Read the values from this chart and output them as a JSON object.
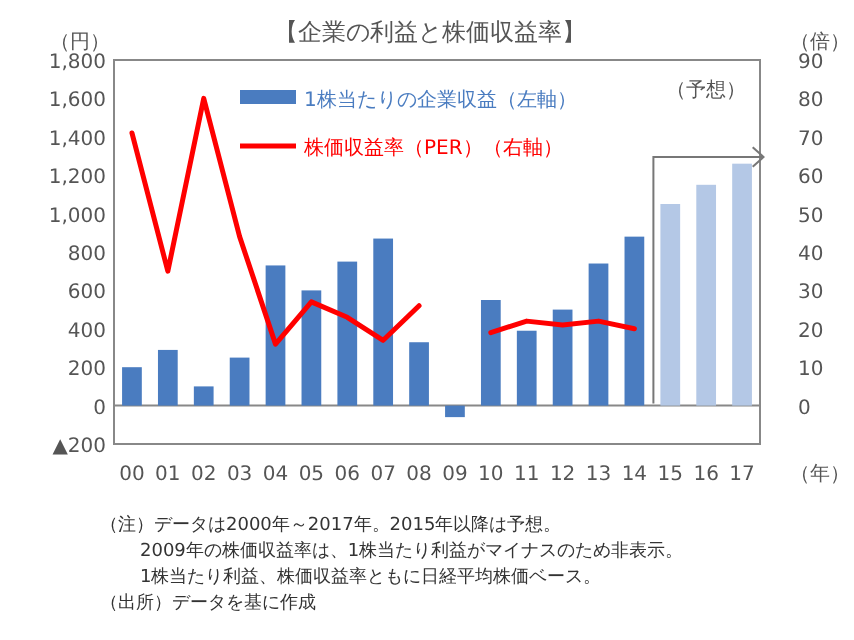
{
  "chart_data": {
    "type": "bar",
    "title": "【企業の利益と株価収益率】",
    "ylabel": "（円）",
    "y2label": "（倍）",
    "xlabel": "（年）",
    "categories": [
      "00",
      "01",
      "02",
      "03",
      "04",
      "05",
      "06",
      "07",
      "08",
      "09",
      "10",
      "11",
      "12",
      "13",
      "14",
      "15",
      "16",
      "17"
    ],
    "series": [
      {
        "name": "1株当たりの企業収益（左軸）",
        "color": "#4a7cc0",
        "colors": [
          "#4a7cc0",
          "#4a7cc0",
          "#4a7cc0",
          "#4a7cc0",
          "#4a7cc0",
          "#4a7cc0",
          "#4a7cc0",
          "#4a7cc0",
          "#4a7cc0",
          "#4a7cc0",
          "#4a7cc0",
          "#4a7cc0",
          "#4a7cc0",
          "#4a7cc0",
          "#4a7cc0",
          "#b4c8e6",
          "#b4c8e6",
          "#b4c8e6"
        ],
        "values": [
          200,
          290,
          100,
          250,
          730,
          600,
          750,
          870,
          330,
          -60,
          550,
          390,
          500,
          740,
          880,
          1050,
          1150,
          1260
        ]
      },
      {
        "name": "株価収益率（PER）（右軸）",
        "type": "line",
        "axis": "y2",
        "color": "#ff0000",
        "values": [
          71,
          35,
          80,
          44,
          16,
          27,
          23,
          17,
          26,
          null,
          19,
          22,
          21,
          22,
          20,
          null,
          null,
          null
        ]
      }
    ],
    "ylim": [
      -200,
      1800
    ],
    "yticks": [
      {
        "value": -200,
        "label": "▲200"
      },
      0,
      200,
      400,
      600,
      800,
      {
        "value": 1000,
        "label": "1,000"
      },
      {
        "value": 1200,
        "label": "1,200"
      },
      {
        "value": 1400,
        "label": "1,400"
      },
      {
        "value": 1600,
        "label": "1,600"
      },
      {
        "value": 1800,
        "label": "1,800"
      }
    ],
    "y2lim": [
      -10,
      90
    ],
    "y2ticks": [
      0,
      10,
      20,
      30,
      40,
      50,
      60,
      70,
      80,
      90
    ],
    "legend": "top",
    "ref_lines": [
      {
        "axis": "y",
        "value": 0,
        "color": "#888888"
      }
    ],
    "annotations": [
      "（予想）",
      "（注）データは2000年～2017年。2015年以降は予想。",
      "2009年の株価収益率は、1株当たり利益がマイナスのため非表示。",
      "1株当たり利益、株価収益率ともに日経平均株価ベース。",
      "（出所）データを基に作成"
    ]
  }
}
